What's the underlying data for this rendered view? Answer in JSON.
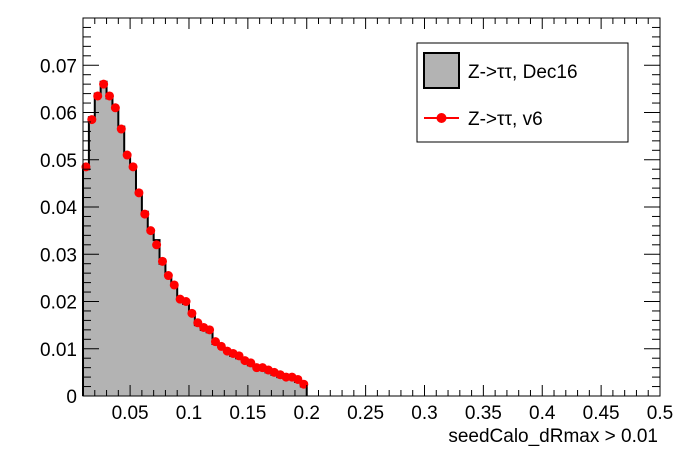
{
  "chart_data": {
    "type": "bar",
    "title": "",
    "xlabel": "seedCalo_dRmax > 0.01",
    "ylabel": "",
    "xlim": [
      0.01,
      0.5
    ],
    "ylim": [
      0,
      0.08
    ],
    "grid": false,
    "legend_position": "top-right",
    "x_ticks": [
      "0.05",
      "0.1",
      "0.15",
      "0.2",
      "0.25",
      "0.3",
      "0.35",
      "0.4",
      "0.45",
      "0.5"
    ],
    "y_ticks": [
      "0",
      "0.01",
      "0.02",
      "0.03",
      "0.04",
      "0.05",
      "0.06",
      "0.07"
    ],
    "bin_edges": [
      0.01,
      0.015,
      0.02,
      0.025,
      0.03,
      0.035,
      0.04,
      0.045,
      0.05,
      0.055,
      0.06,
      0.065,
      0.07,
      0.075,
      0.08,
      0.085,
      0.09,
      0.095,
      0.1,
      0.105,
      0.11,
      0.115,
      0.12,
      0.125,
      0.13,
      0.135,
      0.14,
      0.145,
      0.15,
      0.155,
      0.16,
      0.165,
      0.17,
      0.175,
      0.18,
      0.185,
      0.19,
      0.195,
      0.2
    ],
    "series": [
      {
        "name": "Z->ττ, Dec16",
        "style": "filled-histogram",
        "fill_color": "#b3b3b3",
        "line_color": "#000000",
        "values": [
          0.048,
          0.059,
          0.064,
          0.0665,
          0.063,
          0.061,
          0.057,
          0.051,
          0.0485,
          0.043,
          0.039,
          0.035,
          0.033,
          0.028,
          0.0255,
          0.0235,
          0.0205,
          0.0195,
          0.0175,
          0.015,
          0.014,
          0.0135,
          0.011,
          0.0105,
          0.0095,
          0.0085,
          0.008,
          0.0075,
          0.0065,
          0.006,
          0.0055,
          0.005,
          0.0045,
          0.004,
          0.004,
          0.0035,
          0.003,
          0.002
        ]
      },
      {
        "name": "Z->ττ, v6",
        "style": "markers",
        "color": "#ff0000",
        "values": [
          0.0485,
          0.0585,
          0.0635,
          0.066,
          0.0635,
          0.061,
          0.0565,
          0.051,
          0.0485,
          0.043,
          0.0385,
          0.035,
          0.032,
          0.0285,
          0.0255,
          0.0235,
          0.0205,
          0.02,
          0.0175,
          0.0155,
          0.0145,
          0.014,
          0.0115,
          0.0105,
          0.0095,
          0.009,
          0.0085,
          0.0075,
          0.007,
          0.006,
          0.006,
          0.0055,
          0.005,
          0.0045,
          0.004,
          0.004,
          0.0035,
          0.0025
        ]
      }
    ]
  }
}
